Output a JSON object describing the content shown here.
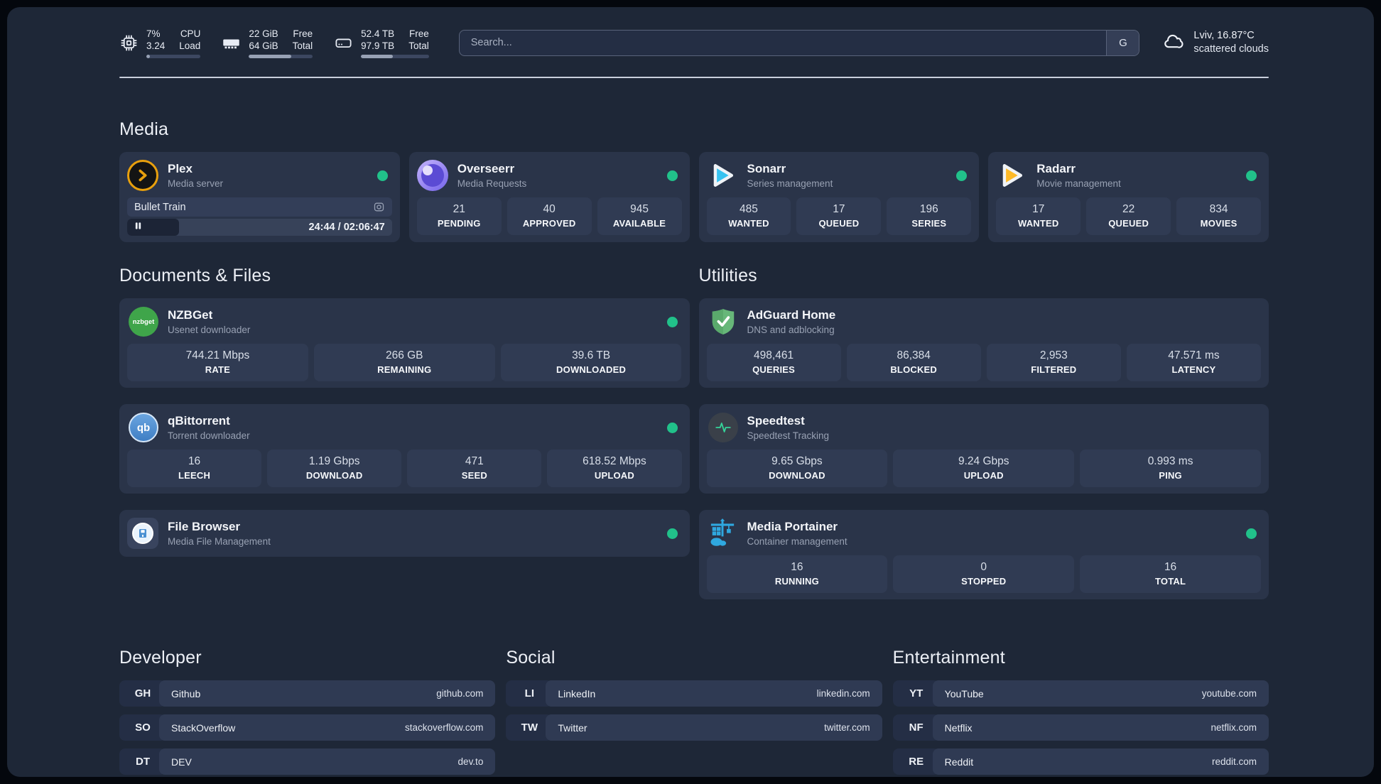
{
  "colors": {
    "background": "#1e2737",
    "card": "#2a3449",
    "status_online": "#21c18a",
    "plex_gold": "#e8a00d",
    "sonarr_blue": "#37c3f1",
    "radarr_yellow": "#fdb927",
    "adguard_green": "#67b779",
    "portainer_blue": "#2fa8e0"
  },
  "header": {
    "stats": [
      {
        "icon": "cpu-icon",
        "value_top": "7%",
        "value_bottom": "3.24",
        "label_top": "CPU",
        "label_bottom": "Load",
        "progress_pct": 7
      },
      {
        "icon": "memory-icon",
        "value_top": "22 GiB",
        "value_bottom": "64 GiB",
        "label_top": "Free",
        "label_bottom": "Total",
        "progress_pct": 66
      },
      {
        "icon": "disk-icon",
        "value_top": "52.4 TB",
        "value_bottom": "97.9 TB",
        "label_top": "Free",
        "label_bottom": "Total",
        "progress_pct": 47
      }
    ],
    "search": {
      "placeholder": "Search...",
      "engine_button": "G"
    },
    "weather": {
      "location": "Lviv, 16.87°C",
      "condition": "scattered clouds"
    }
  },
  "sections": {
    "media": {
      "title": "Media",
      "apps": [
        {
          "name": "Plex",
          "description": "Media server",
          "online": true,
          "player": {
            "title": "Bullet Train",
            "elapsed": "24:44",
            "duration": "02:06:47",
            "time_display": "24:44 / 02:06:47",
            "progress_pct": 19.5
          }
        },
        {
          "name": "Overseerr",
          "description": "Media Requests",
          "online": true,
          "stats": [
            {
              "value": "21",
              "label": "PENDING"
            },
            {
              "value": "40",
              "label": "APPROVED"
            },
            {
              "value": "945",
              "label": "AVAILABLE"
            }
          ]
        },
        {
          "name": "Sonarr",
          "description": "Series management",
          "online": true,
          "stats": [
            {
              "value": "485",
              "label": "WANTED"
            },
            {
              "value": "17",
              "label": "QUEUED"
            },
            {
              "value": "196",
              "label": "SERIES"
            }
          ]
        },
        {
          "name": "Radarr",
          "description": "Movie management",
          "online": true,
          "stats": [
            {
              "value": "17",
              "label": "WANTED"
            },
            {
              "value": "22",
              "label": "QUEUED"
            },
            {
              "value": "834",
              "label": "MOVIES"
            }
          ]
        }
      ]
    },
    "documents": {
      "title": "Documents & Files",
      "apps": [
        {
          "name": "NZBGet",
          "description": "Usenet downloader",
          "online": true,
          "icon_text": "nzbget",
          "stats": [
            {
              "value": "744.21 Mbps",
              "label": "RATE"
            },
            {
              "value": "266 GB",
              "label": "REMAINING"
            },
            {
              "value": "39.6 TB",
              "label": "DOWNLOADED"
            }
          ]
        },
        {
          "name": "qBittorrent",
          "description": "Torrent downloader",
          "online": true,
          "icon_text": "qb",
          "stats": [
            {
              "value": "16",
              "label": "LEECH"
            },
            {
              "value": "1.19 Gbps",
              "label": "DOWNLOAD"
            },
            {
              "value": "471",
              "label": "SEED"
            },
            {
              "value": "618.52 Mbps",
              "label": "UPLOAD"
            }
          ]
        },
        {
          "name": "File Browser",
          "description": "Media File Management",
          "online": true,
          "stats": []
        }
      ]
    },
    "utilities": {
      "title": "Utilities",
      "apps": [
        {
          "name": "AdGuard Home",
          "description": "DNS and adblocking",
          "online": false,
          "stats": [
            {
              "value": "498,461",
              "label": "QUERIES"
            },
            {
              "value": "86,384",
              "label": "BLOCKED"
            },
            {
              "value": "2,953",
              "label": "FILTERED"
            },
            {
              "value": "47.571 ms",
              "label": "LATENCY"
            }
          ]
        },
        {
          "name": "Speedtest",
          "description": "Speedtest Tracking",
          "online": false,
          "stats": [
            {
              "value": "9.65 Gbps",
              "label": "DOWNLOAD"
            },
            {
              "value": "9.24 Gbps",
              "label": "UPLOAD"
            },
            {
              "value": "0.993 ms",
              "label": "PING"
            }
          ]
        },
        {
          "name": "Media Portainer",
          "description": "Container management",
          "online": true,
          "stats": [
            {
              "value": "16",
              "label": "RUNNING"
            },
            {
              "value": "0",
              "label": "STOPPED"
            },
            {
              "value": "16",
              "label": "TOTAL"
            }
          ]
        }
      ]
    },
    "bookmarks": [
      {
        "title": "Developer",
        "links": [
          {
            "abbr": "GH",
            "name": "Github",
            "url": "github.com"
          },
          {
            "abbr": "SO",
            "name": "StackOverflow",
            "url": "stackoverflow.com"
          },
          {
            "abbr": "DT",
            "name": "DEV",
            "url": "dev.to"
          }
        ]
      },
      {
        "title": "Social",
        "links": [
          {
            "abbr": "LI",
            "name": "LinkedIn",
            "url": "linkedin.com"
          },
          {
            "abbr": "TW",
            "name": "Twitter",
            "url": "twitter.com"
          }
        ]
      },
      {
        "title": "Entertainment",
        "links": [
          {
            "abbr": "YT",
            "name": "YouTube",
            "url": "youtube.com"
          },
          {
            "abbr": "NF",
            "name": "Netflix",
            "url": "netflix.com"
          },
          {
            "abbr": "RE",
            "name": "Reddit",
            "url": "reddit.com"
          }
        ]
      }
    ]
  }
}
